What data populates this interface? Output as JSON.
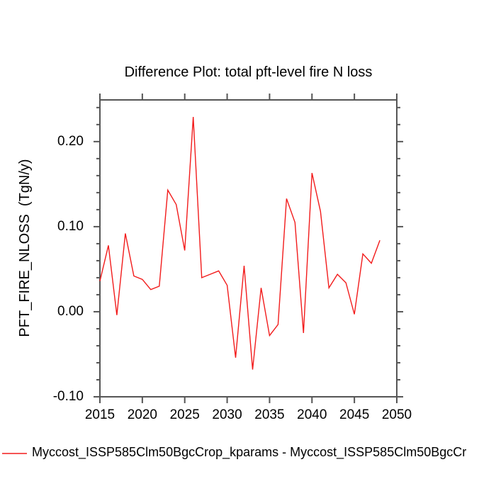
{
  "title": "Difference Plot: total pft-level fire N loss",
  "y_axis_label": "PFT_FIRE_NLOSS  (TgN/y)",
  "legend": {
    "series_label": "Myccost_ISSP585Clm50BgcCrop_kparams - Myccost_ISSP585Clm50BgcCr",
    "line_color": "#f21b1b"
  },
  "colors": {
    "line": "#f21b1b",
    "axis": "#555555",
    "text": "#000000",
    "background": "#ffffff"
  },
  "chart_data": {
    "type": "line",
    "title": "Difference Plot: total pft-level fire N loss",
    "xlabel": "",
    "ylabel": "PFT_FIRE_NLOSS  (TgN/y)",
    "series": [
      {
        "name": "Myccost_ISSP585Clm50BgcCrop_kparams - Myccost_ISSP585Clm50BgcCr",
        "color": "#f21b1b",
        "x": [
          2015,
          2016,
          2017,
          2018,
          2019,
          2020,
          2021,
          2022,
          2023,
          2024,
          2025,
          2026,
          2027,
          2028,
          2029,
          2030,
          2031,
          2032,
          2033,
          2034,
          2035,
          2036,
          2037,
          2038,
          2039,
          2040,
          2041,
          2042,
          2043,
          2044,
          2045,
          2046,
          2047,
          2048
        ],
        "values": [
          0.036,
          0.078,
          -0.004,
          0.092,
          0.042,
          0.038,
          0.026,
          0.03,
          0.143,
          0.126,
          0.072,
          0.229,
          0.04,
          0.044,
          0.048,
          0.031,
          -0.054,
          0.054,
          -0.068,
          0.028,
          -0.028,
          -0.015,
          0.133,
          0.105,
          -0.025,
          0.163,
          0.118,
          0.028,
          0.044,
          0.034,
          -0.003,
          0.068,
          0.057,
          0.084
        ]
      }
    ],
    "xlim": [
      2015,
      2050
    ],
    "ylim": [
      -0.1,
      0.249
    ],
    "xticks": [
      2015,
      2020,
      2025,
      2030,
      2035,
      2040,
      2045,
      2050
    ],
    "xtick_labels": [
      "2015",
      "2020",
      "2025",
      "2030",
      "2035",
      "2040",
      "2045",
      "2050"
    ],
    "yticks": [
      -0.1,
      0.0,
      0.1,
      0.2
    ],
    "ytick_labels": [
      "-0.10",
      "0.00",
      "0.10",
      "0.20"
    ],
    "y_minor_step": 0.02,
    "grid": false,
    "legend_position": "bottom-left"
  }
}
